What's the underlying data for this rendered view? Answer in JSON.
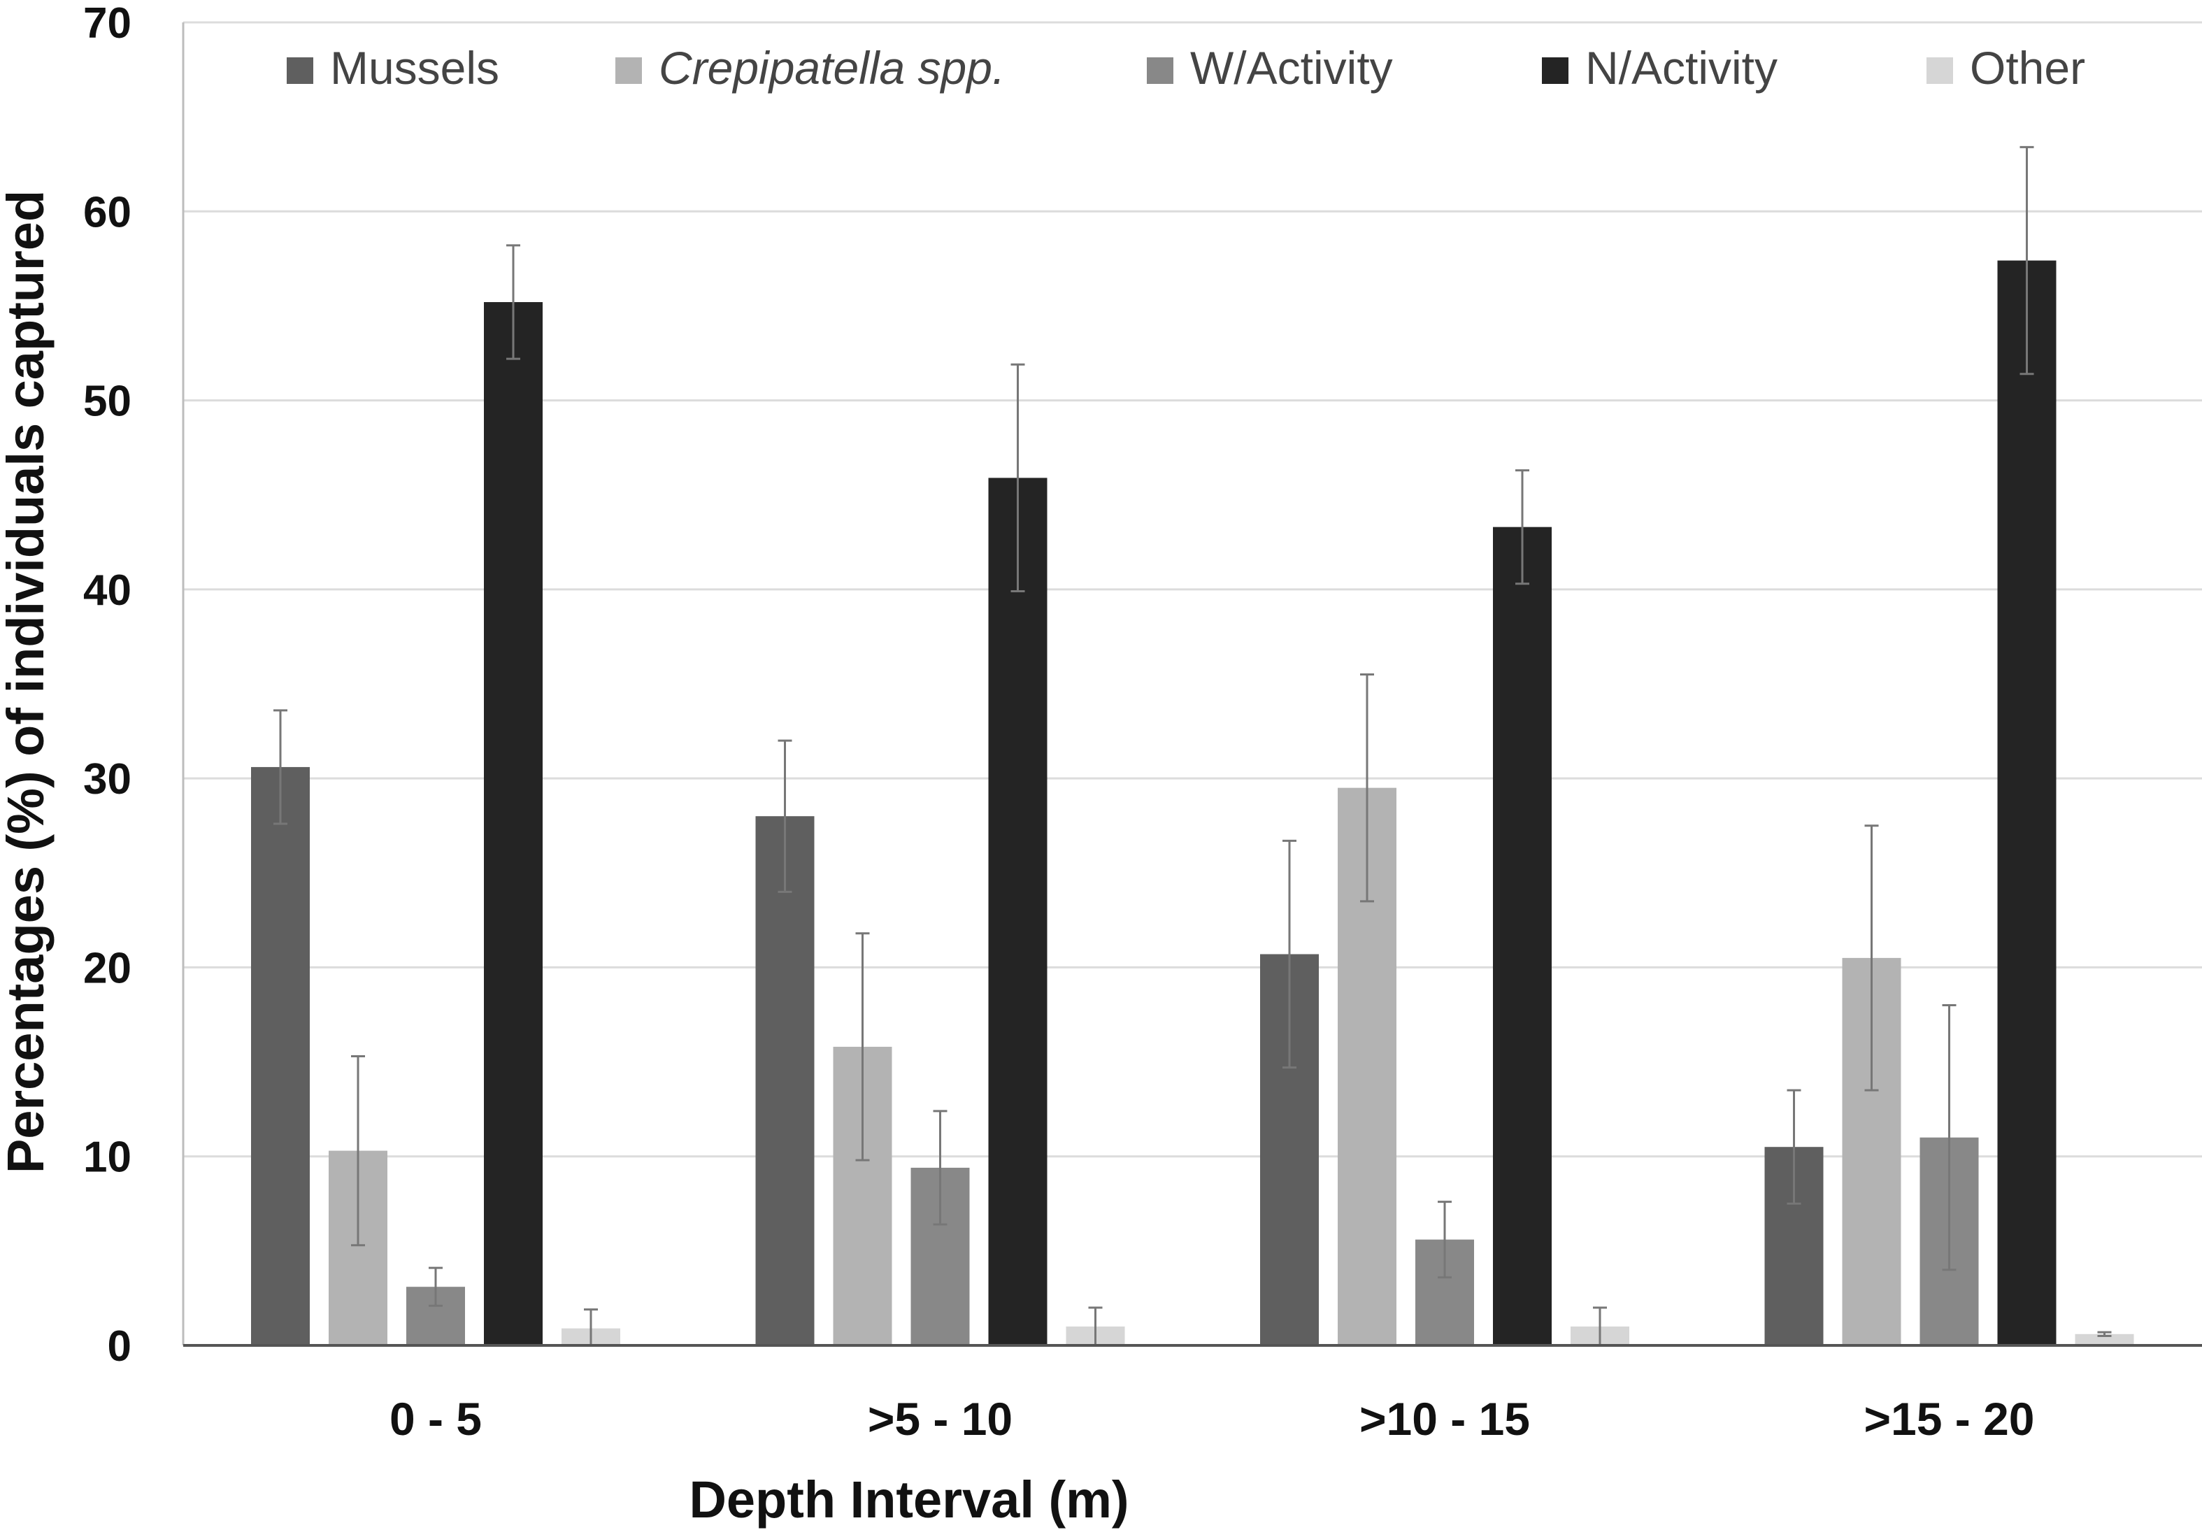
{
  "chart_data": {
    "type": "bar",
    "title": "",
    "xlabel": "Depth Interval (m)",
    "ylabel": "Percentages (%) of individuals captured",
    "ylim": [
      0,
      70
    ],
    "yticks": [
      "0",
      "10",
      "20",
      "30",
      "40",
      "50",
      "60",
      "70"
    ],
    "grid": true,
    "legend_position": "top",
    "categories": [
      "0 - 5",
      ">5 - 10",
      ">10 - 15",
      ">15 - 20"
    ],
    "series": [
      {
        "name": "Mussels",
        "italic": false,
        "color": "#5f5f5f",
        "values": [
          30.6,
          28.0,
          20.7,
          10.5
        ],
        "error": [
          3.0,
          4.0,
          6.0,
          3.0
        ]
      },
      {
        "name": "Crepipatella spp.",
        "italic": true,
        "color": "#b3b3b3",
        "values": [
          10.3,
          15.8,
          29.5,
          20.5
        ],
        "error": [
          5.0,
          6.0,
          6.0,
          7.0
        ]
      },
      {
        "name": "W/Activity",
        "italic": false,
        "color": "#888888",
        "values": [
          3.1,
          9.4,
          5.6,
          11.0
        ],
        "error": [
          1.0,
          3.0,
          2.0,
          7.0
        ]
      },
      {
        "name": "N/Activity",
        "italic": false,
        "color": "#242424",
        "values": [
          55.2,
          45.9,
          43.3,
          57.4
        ],
        "error": [
          3.0,
          6.0,
          3.0,
          6.0
        ]
      },
      {
        "name": "Other",
        "italic": false,
        "color": "#d6d6d6",
        "values": [
          0.9,
          1.0,
          1.0,
          0.6
        ],
        "error": [
          1.0,
          1.0,
          1.0,
          0.1
        ]
      }
    ]
  }
}
